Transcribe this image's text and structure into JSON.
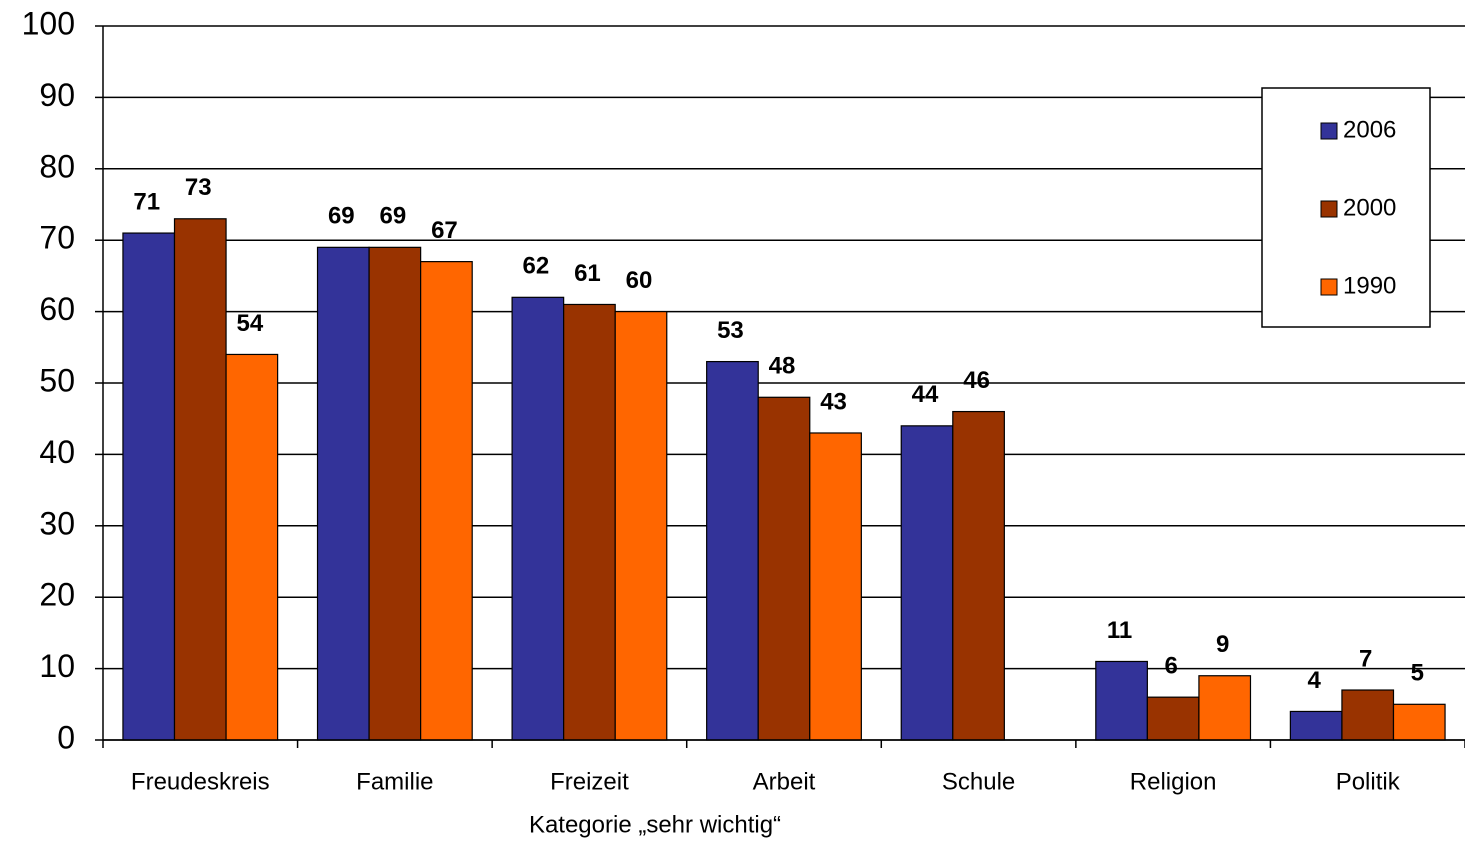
{
  "chart_data": {
    "type": "bar",
    "x_label": "Kategorie „sehr wichtig“",
    "categories": [
      "Freudeskreis",
      "Familie",
      "Freizeit",
      "Arbeit",
      "Schule",
      "Religion",
      "Politik"
    ],
    "series": [
      {
        "name": "2006",
        "color": "#333399",
        "values": [
          71,
          69,
          62,
          53,
          44,
          11,
          4
        ]
      },
      {
        "name": "2000",
        "color": "#993300",
        "values": [
          73,
          69,
          61,
          48,
          46,
          6,
          7
        ]
      },
      {
        "name": "1990",
        "color": "#ff6600",
        "values": [
          54,
          67,
          60,
          43,
          null,
          9,
          5
        ]
      }
    ],
    "ylim": [
      0,
      100
    ],
    "yticks": [
      0,
      10,
      20,
      30,
      40,
      50,
      60,
      70,
      80,
      90,
      100
    ],
    "grid": true,
    "legend": "upper right"
  }
}
